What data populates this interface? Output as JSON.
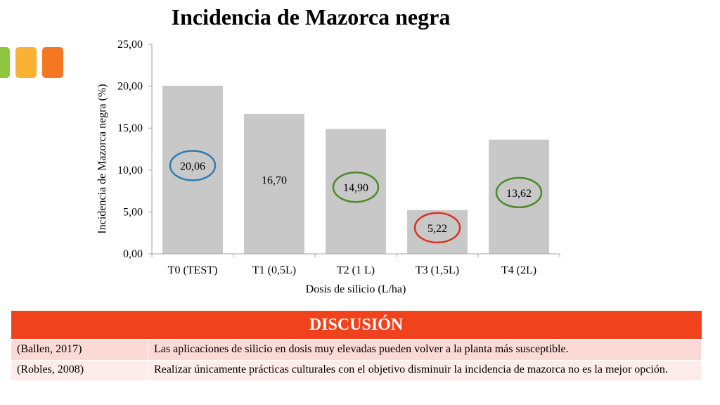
{
  "colors": {
    "bar": "#c8c8c8",
    "axis": "#a6a6a6",
    "header": "#f0421d",
    "circle_blue": "#2e7fae",
    "circle_green": "#4e8a2a",
    "circle_red": "#d93622",
    "deco_green": "#8ec63f",
    "deco_yellow": "#f9b234",
    "deco_orange": "#f47721"
  },
  "chart_data": {
    "type": "bar",
    "title": "Incidencia de Mazorca negra",
    "xlabel": "Dosis de silicio (L/ha)",
    "ylabel": "Incidencia de Mazorca negra (%)",
    "ylim": [
      0,
      25
    ],
    "yticks": [
      "0,00",
      "5,00",
      "10,00",
      "15,00",
      "20,00",
      "25,00"
    ],
    "categories": [
      "T0 (TEST)",
      "T1 (0,5L)",
      "T2 (1 L)",
      "T3 (1,5L)",
      "T4 (2L)"
    ],
    "values": [
      20.06,
      16.7,
      14.9,
      5.22,
      13.62
    ],
    "data_labels": [
      "20,06",
      "16,70",
      "14,90",
      "5,22",
      "13,62"
    ],
    "label_circles": [
      "blue",
      "",
      "green",
      "red",
      "green"
    ],
    "grid": false,
    "legend": "none"
  },
  "discussion": {
    "header": "DISCUSIÓN",
    "rows": [
      {
        "source": "(Ballen, 2017)",
        "text": "Las aplicaciones de silicio en dosis muy elevadas pueden volver a la planta más susceptible."
      },
      {
        "source": "(Robles, 2008)",
        "text": "Realizar únicamente prácticas culturales con el objetivo disminuir la incidencia de mazorca no es la mejor opción."
      }
    ]
  }
}
